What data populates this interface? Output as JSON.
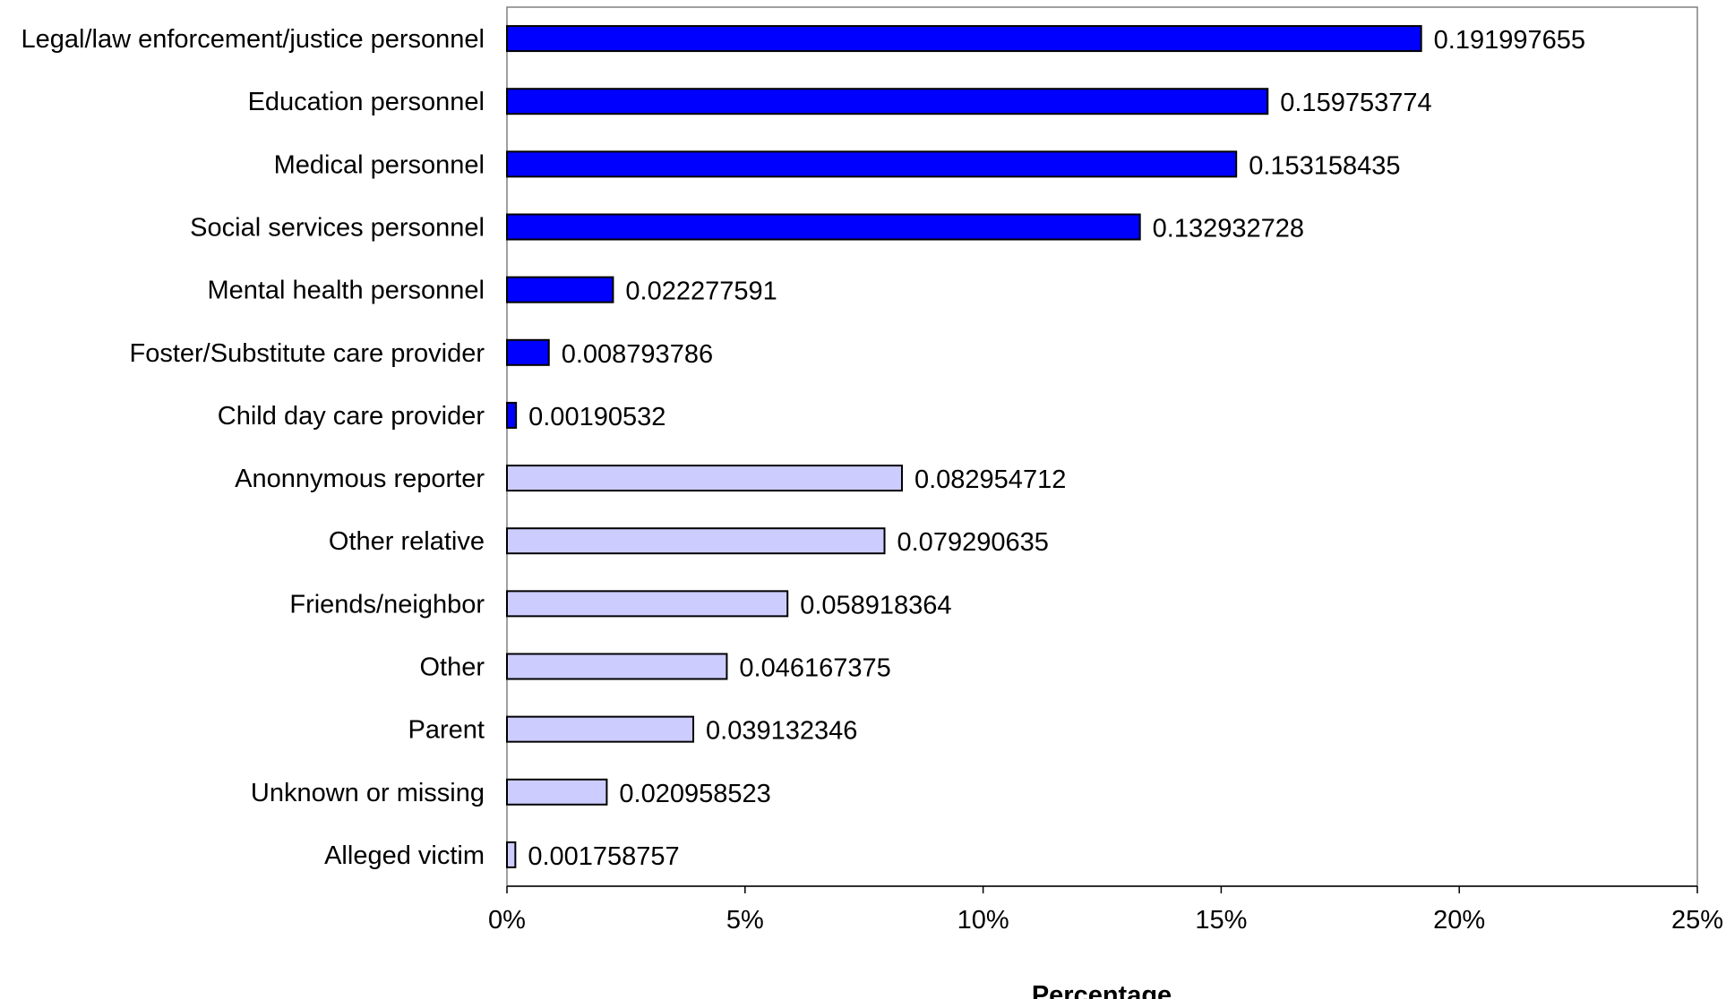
{
  "chart_data": {
    "type": "bar",
    "orientation": "horizontal",
    "xlabel": "Percentage",
    "ylabel": "",
    "xlim": [
      0,
      0.25
    ],
    "x_ticks": [
      0,
      0.05,
      0.1,
      0.15,
      0.2,
      0.25
    ],
    "x_tick_labels": [
      "0%",
      "5%",
      "10%",
      "15%",
      "20%",
      "25%"
    ],
    "grid": false,
    "legend": "none",
    "colors": {
      "professional": "#0000ff",
      "nonprofessional": "#ccccff",
      "border": "#000000"
    },
    "categories": [
      "Legal/law enforcement/justice personnel",
      "Education personnel",
      "Medical personnel",
      "Social services personnel",
      "Mental health personnel",
      "Foster/Substitute care provider",
      "Child day care provider",
      "Anonnymous reporter",
      "Other relative",
      "Friends/neighbor",
      "Other",
      "Parent",
      "Unknown or missing",
      "Alleged victim"
    ],
    "values": [
      0.191997655,
      0.159753774,
      0.153158435,
      0.132932728,
      0.022277591,
      0.008793786,
      0.00190532,
      0.082954712,
      0.079290635,
      0.058918364,
      0.046167375,
      0.039132346,
      0.020958523,
      0.001758757
    ],
    "value_labels": [
      "0.191997655",
      "0.159753774",
      "0.153158435",
      "0.132932728",
      "0.022277591",
      "0.008793786",
      "0.00190532",
      "0.082954712",
      "0.079290635",
      "0.058918364",
      "0.046167375",
      "0.039132346",
      "0.020958523",
      "0.001758757"
    ],
    "groups": [
      "professional",
      "professional",
      "professional",
      "professional",
      "professional",
      "professional",
      "professional",
      "nonprofessional",
      "nonprofessional",
      "nonprofessional",
      "nonprofessional",
      "nonprofessional",
      "nonprofessional",
      "nonprofessional"
    ]
  }
}
